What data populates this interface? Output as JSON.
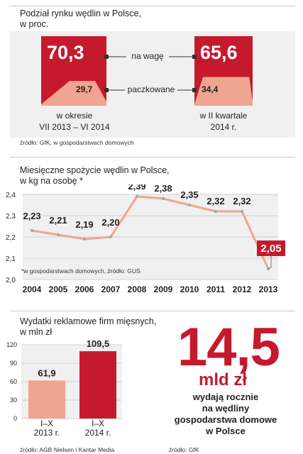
{
  "section1": {
    "title_line1": "Podział rynku wędlin w Polsce,",
    "title_line2": "w proc.",
    "label_weight": "na wagę",
    "label_packaged": "paczkowane",
    "left_caption_1": "w okresie",
    "left_caption_2": "VII 2013 – VI 2014",
    "right_caption_1": "w II kwartale",
    "right_caption_2": "2014 r.",
    "source": "źródło: GfK, w gospodarstwach domowych"
  },
  "section2": {
    "title_line1": "Miesięczne spożycie wędlin w Polsce,",
    "title_line2": "w kg na osobę *",
    "footnote": "*w gospodarstwach domowych, źródło: GUS"
  },
  "section3": {
    "title_line1": "Wydatki reklamowe firm mięsnych,",
    "title_line2": "w mln zł",
    "source": "źródło: AGB Nielsen i Kantar Media"
  },
  "section4": {
    "big_value": "14,5",
    "unit": "mld zł",
    "line1": "wydają rocznie",
    "line2": "na wędliny",
    "line3": "gospodarstwa domowe",
    "line4": "w Polsce",
    "source": "źródło: GfK"
  },
  "chart_data": [
    {
      "type": "bar",
      "categories": [
        "w okresie VII 2013 – VI 2014",
        "w II kwartale 2014 r."
      ],
      "series": [
        {
          "name": "na wagę",
          "values": [
            70.3,
            65.6
          ],
          "labels": [
            "70,3",
            "65,6"
          ]
        },
        {
          "name": "paczkowane",
          "values": [
            29.7,
            34.4
          ],
          "labels": [
            "29,7",
            "34,4"
          ]
        }
      ],
      "title": "Podział rynku wędlin w Polsce, w proc.",
      "colors": {
        "na wagę": "#c5192d",
        "paczkowane": "#f0a590"
      }
    },
    {
      "type": "line",
      "title": "Miesięczne spożycie wędlin w Polsce, w kg na osobę *",
      "x": [
        2004,
        2005,
        2006,
        2007,
        2008,
        2009,
        2010,
        2011,
        2012,
        2013
      ],
      "x_labels": [
        "2004",
        "2005",
        "2006",
        "2007",
        "2008",
        "2009",
        "2010",
        "2011",
        "2012",
        "2013"
      ],
      "values": [
        2.23,
        2.21,
        2.19,
        2.2,
        2.39,
        2.38,
        2.35,
        2.32,
        2.32,
        2.05
      ],
      "value_labels": [
        "2,23",
        "2,21",
        "2,19",
        "2,20",
        "2,39",
        "2,38",
        "2,35",
        "2,32",
        "2,32",
        "2,05"
      ],
      "ylim": [
        2.0,
        2.4
      ],
      "yticks": [
        2.0,
        2.1,
        2.2,
        2.3,
        2.4
      ],
      "ytick_labels": [
        "2,0",
        "2,1",
        "2,2",
        "2,3",
        "2,4"
      ],
      "highlight_index": 9,
      "colors": {
        "line": "#f0a590",
        "highlight": "#c5192d"
      }
    },
    {
      "type": "bar",
      "title": "Wydatki reklamowe firm mięsnych, w mln zł",
      "categories": [
        "I–X 2013 r.",
        "I–X 2014 r."
      ],
      "category_lines": [
        [
          "I–X",
          "2013 r."
        ],
        [
          "I–X",
          "2014 r."
        ]
      ],
      "values": [
        61.9,
        109.5
      ],
      "value_labels": [
        "61,9",
        "109,5"
      ],
      "ylim": [
        0,
        120
      ],
      "yticks": [
        0,
        30,
        60,
        90,
        120
      ],
      "ytick_labels": [
        "0",
        "30",
        "60",
        "90",
        "120"
      ],
      "colors": {
        "2013": "#f0a590",
        "2014": "#c5192d"
      }
    }
  ]
}
